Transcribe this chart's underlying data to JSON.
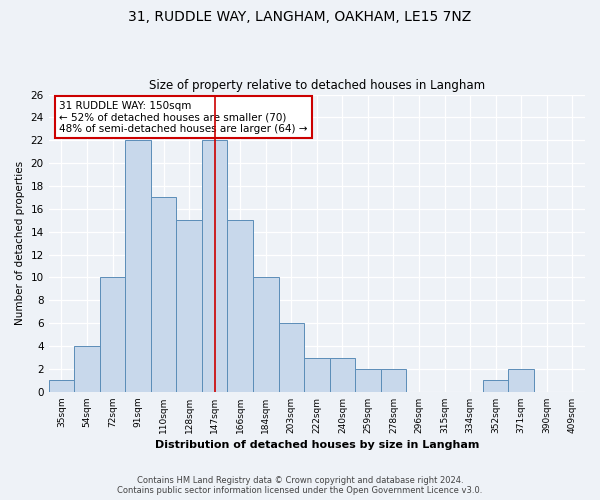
{
  "title1": "31, RUDDLE WAY, LANGHAM, OAKHAM, LE15 7NZ",
  "title2": "Size of property relative to detached houses in Langham",
  "xlabel": "Distribution of detached houses by size in Langham",
  "ylabel": "Number of detached properties",
  "categories": [
    "35sqm",
    "54sqm",
    "72sqm",
    "91sqm",
    "110sqm",
    "128sqm",
    "147sqm",
    "166sqm",
    "184sqm",
    "203sqm",
    "222sqm",
    "240sqm",
    "259sqm",
    "278sqm",
    "296sqm",
    "315sqm",
    "334sqm",
    "352sqm",
    "371sqm",
    "390sqm",
    "409sqm"
  ],
  "values": [
    1,
    4,
    10,
    22,
    17,
    15,
    22,
    15,
    10,
    6,
    3,
    3,
    2,
    2,
    0,
    0,
    0,
    1,
    2,
    0,
    0
  ],
  "bar_color": "#c8d8eb",
  "bar_edge_color": "#5b8db8",
  "vline_x_index": 6,
  "vline_color": "#cc0000",
  "ylim": [
    0,
    26
  ],
  "yticks": [
    0,
    2,
    4,
    6,
    8,
    10,
    12,
    14,
    16,
    18,
    20,
    22,
    24,
    26
  ],
  "annotation_text": "31 RUDDLE WAY: 150sqm\n← 52% of detached houses are smaller (70)\n48% of semi-detached houses are larger (64) →",
  "annotation_box_color": "white",
  "annotation_box_edge": "#cc0000",
  "footer1": "Contains HM Land Registry data © Crown copyright and database right 2024.",
  "footer2": "Contains public sector information licensed under the Open Government Licence v3.0.",
  "bg_color": "#eef2f7",
  "grid_color": "#d8e0ec"
}
